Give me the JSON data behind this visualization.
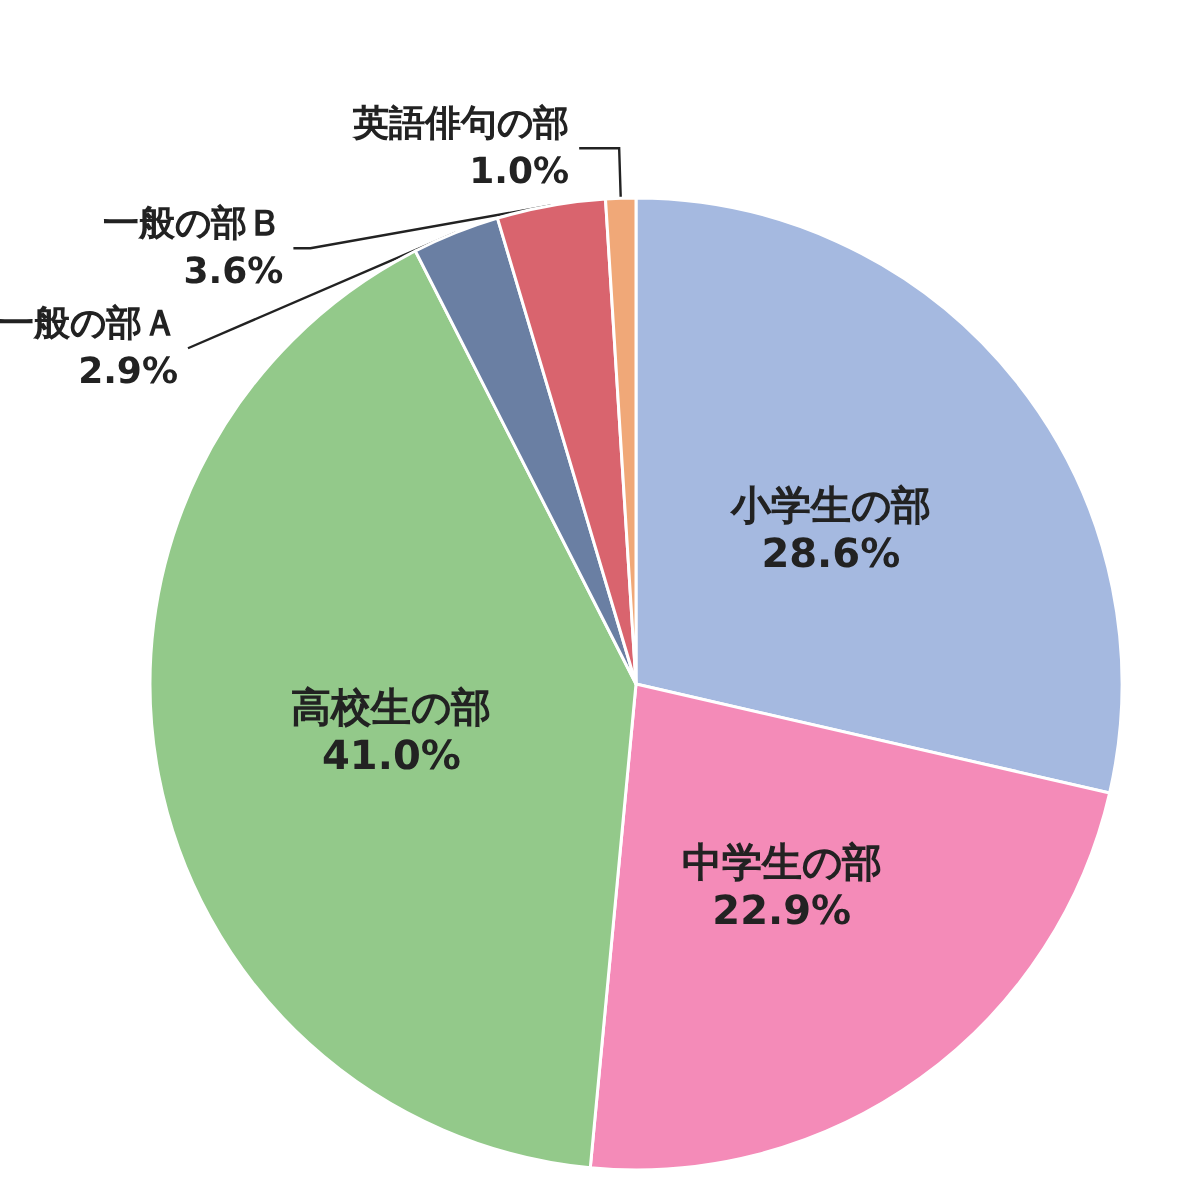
{
  "chart_data": {
    "type": "pie",
    "categories": [
      "小学生の部",
      "中学生の部",
      "高校生の部",
      "一般の部Ａ",
      "一般の部Ｂ",
      "英語俳句の部"
    ],
    "values": [
      28.6,
      22.9,
      41.0,
      2.9,
      3.6,
      1.0
    ],
    "colors": [
      "#a5b9e0",
      "#f48bb8",
      "#93c98a",
      "#6a7fa3",
      "#d9646e",
      "#f0a878"
    ],
    "value_labels": [
      "28.6%",
      "22.9%",
      "41.0%",
      "2.9%",
      "3.6%",
      "1.0%"
    ]
  }
}
